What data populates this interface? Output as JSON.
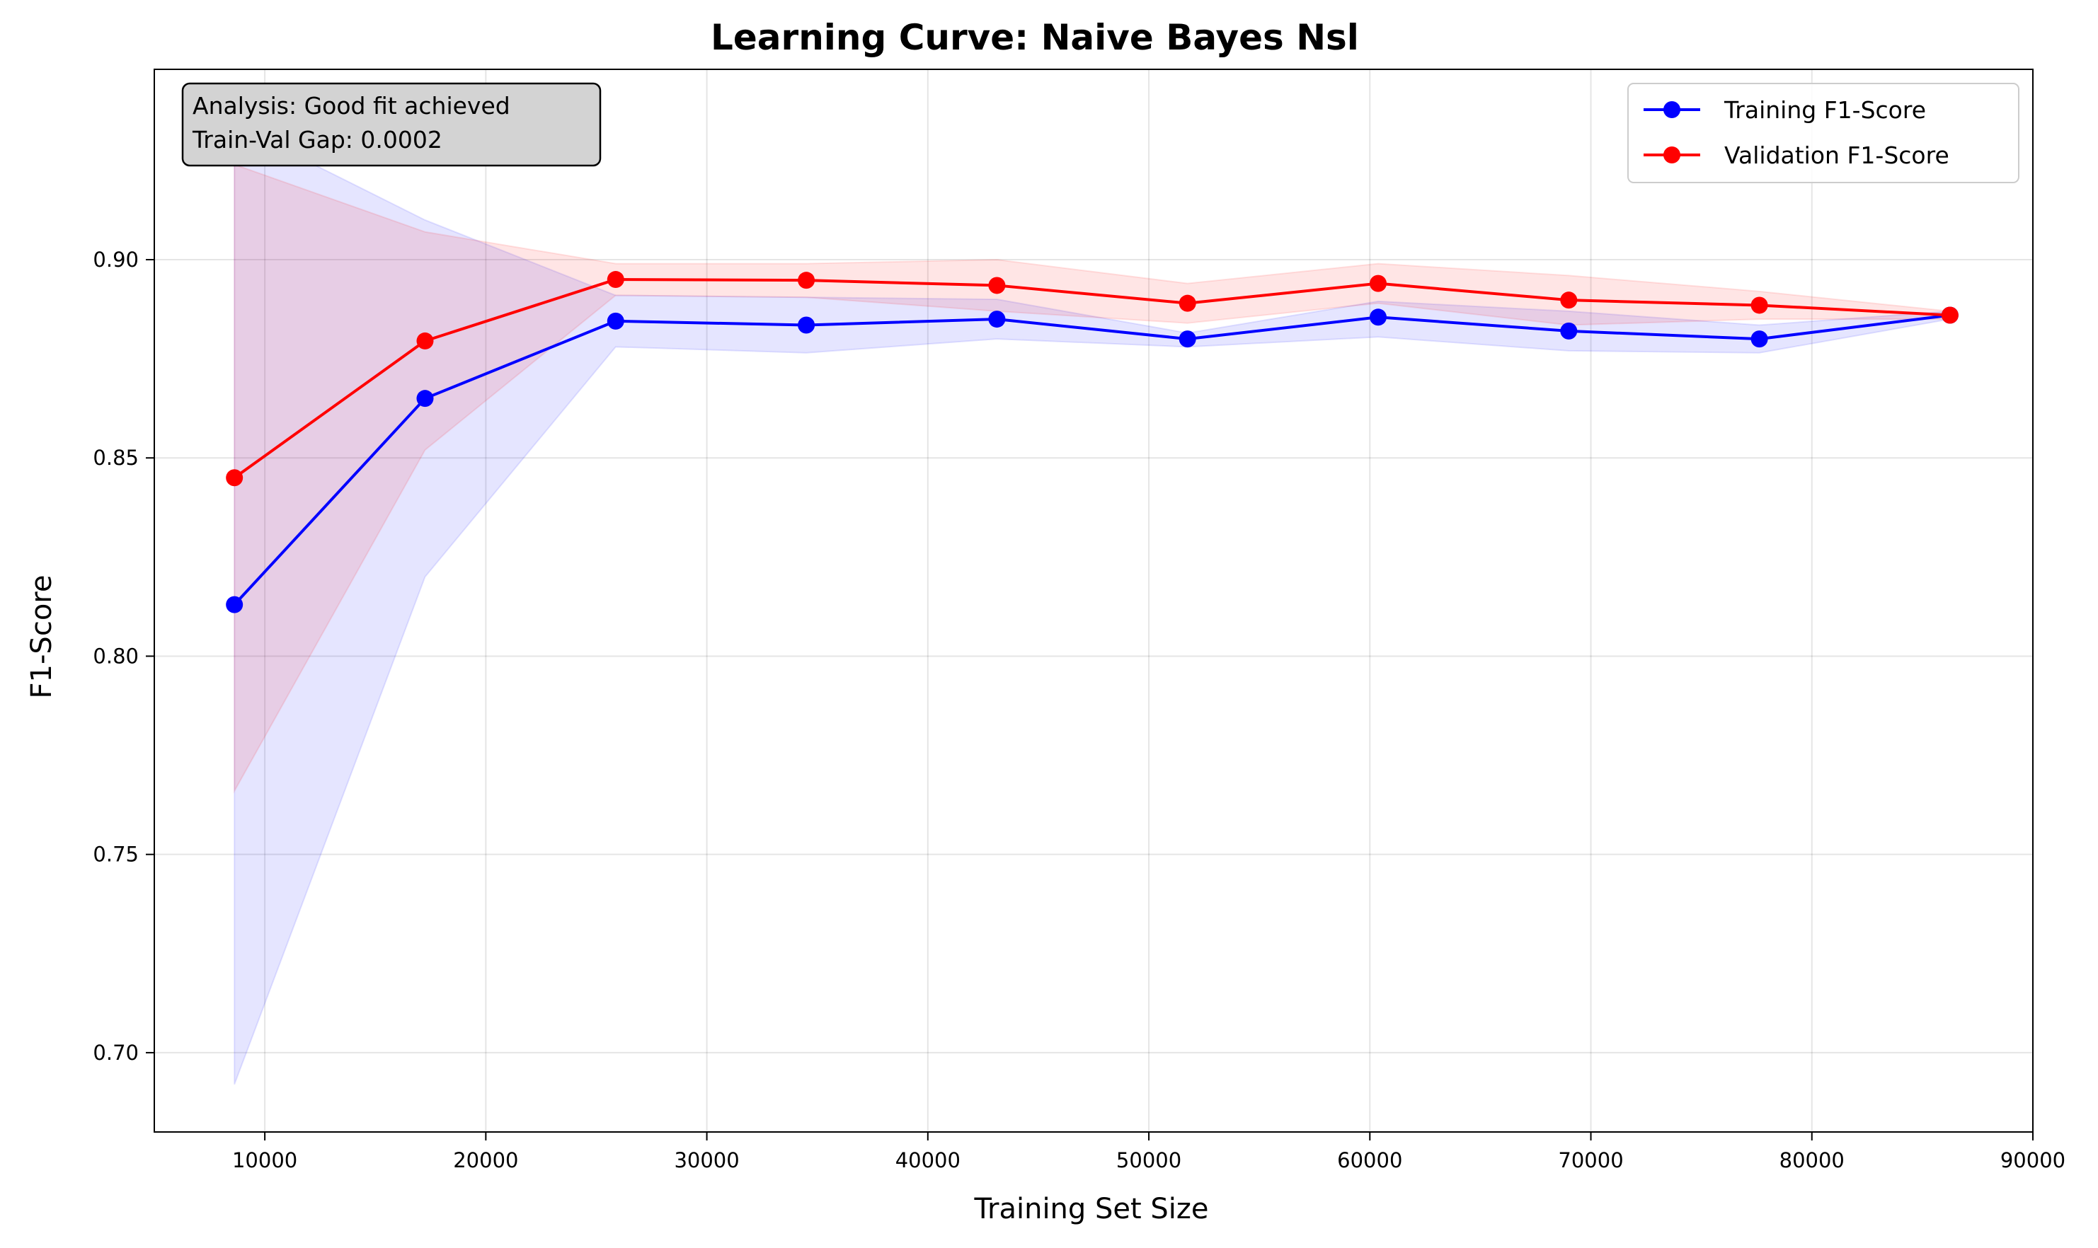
{
  "chart_data": {
    "type": "line",
    "title": "Learning Curve: Naive Bayes Nsl",
    "xlabel": "Training Set Size",
    "ylabel": "F1-Score",
    "xlim": [
      5000,
      90000
    ],
    "ylim": [
      0.68,
      0.948
    ],
    "xticks": [
      10000,
      20000,
      30000,
      40000,
      50000,
      60000,
      70000,
      80000,
      90000
    ],
    "yticks": [
      0.7,
      0.75,
      0.8,
      0.85,
      0.9
    ],
    "grid": true,
    "legend_position": "top-right",
    "x": [
      8625,
      17250,
      25875,
      34500,
      43125,
      51750,
      60375,
      69000,
      77625,
      86250
    ],
    "series": [
      {
        "name": "Training F1-Score",
        "color": "#0000ff",
        "band_color": "#0000ff",
        "values": [
          0.813,
          0.865,
          0.8845,
          0.8835,
          0.885,
          0.88,
          0.8855,
          0.882,
          0.88,
          0.886
        ],
        "upper": [
          0.934,
          0.91,
          0.891,
          0.8905,
          0.89,
          0.8815,
          0.8895,
          0.887,
          0.8835,
          0.887
        ],
        "lower": [
          0.692,
          0.82,
          0.878,
          0.8765,
          0.88,
          0.878,
          0.8805,
          0.877,
          0.8765,
          0.885
        ]
      },
      {
        "name": "Validation F1-Score",
        "color": "#ff0000",
        "band_color": "#ff0000",
        "values": [
          0.845,
          0.8795,
          0.895,
          0.8948,
          0.8935,
          0.889,
          0.894,
          0.8898,
          0.8885,
          0.886
        ],
        "upper": [
          0.924,
          0.907,
          0.899,
          0.899,
          0.9,
          0.894,
          0.899,
          0.896,
          0.892,
          0.887
        ],
        "lower": [
          0.766,
          0.852,
          0.891,
          0.8905,
          0.887,
          0.884,
          0.889,
          0.8835,
          0.885,
          0.885
        ]
      }
    ],
    "annotation": {
      "lines": [
        "Analysis: Good fit achieved",
        "Train-Val Gap: 0.0002"
      ],
      "position": "top-left",
      "background": "#d3d3d3"
    }
  }
}
